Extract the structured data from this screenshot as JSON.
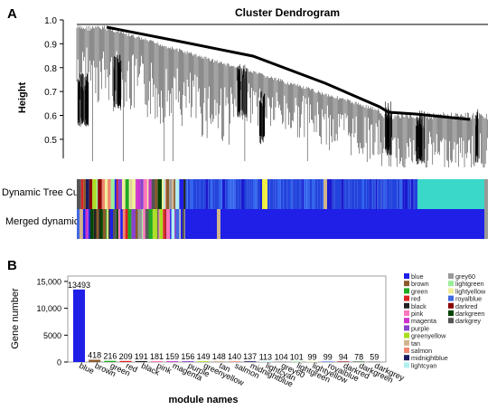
{
  "panelA": {
    "letter": "A",
    "chart_data": {
      "type": "dendrogram",
      "title": "Cluster Dendrogram",
      "ylabel": "Height",
      "yticks": [
        "0.5",
        "0.6",
        "0.7",
        "0.8",
        "0.9",
        "1.0"
      ],
      "ylim": [
        0.42,
        1.0
      ]
    },
    "row_labels": {
      "dynamic": "Dynamic Tree Cut",
      "merged": "Merged dynamic"
    }
  },
  "panelB": {
    "letter": "B",
    "chart_data": {
      "type": "bar",
      "ylabel": "Gene number",
      "xlabel": "module names",
      "ylim": [
        0,
        16000
      ],
      "yticks": [
        "0",
        "5000",
        "10,000",
        "15,000"
      ],
      "ytick_values": [
        0,
        5000,
        10000,
        15000
      ],
      "categories": [
        "blue",
        "brown",
        "green",
        "red",
        "black",
        "pink",
        "magenta",
        "purple",
        "greenyellow",
        "tan",
        "salmon",
        "midnightblue",
        "lightcyan",
        "grey60",
        "lightgreen",
        "lightyellow",
        "royalblue",
        "darkred",
        "darkgreen",
        "darkgrey"
      ],
      "values": [
        13493,
        418,
        216,
        209,
        191,
        181,
        159,
        156,
        149,
        148,
        140,
        137,
        113,
        104,
        101,
        99,
        99,
        94,
        78,
        59
      ],
      "value_labels": [
        "13493",
        "418",
        "216",
        "209",
        "191",
        "181",
        "159",
        "156",
        "149",
        "148",
        "140",
        "137",
        "113",
        "104",
        "101",
        "99",
        "99",
        "94",
        "78",
        "59"
      ],
      "colors": [
        "#1f1fe8",
        "#8b5a2b",
        "#22aa22",
        "#dd2222",
        "#222222",
        "#ff77bb",
        "#cc33cc",
        "#8844cc",
        "#aadd22",
        "#d2b48c",
        "#f08870",
        "#1a1a60",
        "#b0f0f0",
        "#999999",
        "#99ee99",
        "#eeee99",
        "#4169e1",
        "#8b0000",
        "#004400",
        "#555555"
      ]
    },
    "legend": [
      {
        "label": "blue",
        "color": "#1f1fe8"
      },
      {
        "label": "brown",
        "color": "#8b5a2b"
      },
      {
        "label": "green",
        "color": "#22aa22"
      },
      {
        "label": "red",
        "color": "#dd2222"
      },
      {
        "label": "black",
        "color": "#222222"
      },
      {
        "label": "pink",
        "color": "#ff77bb"
      },
      {
        "label": "magenta",
        "color": "#cc33cc"
      },
      {
        "label": "purple",
        "color": "#8844cc"
      },
      {
        "label": "greenyellow",
        "color": "#aadd22"
      },
      {
        "label": "tan",
        "color": "#d2b48c"
      },
      {
        "label": "salmon",
        "color": "#f08870"
      },
      {
        "label": "midnightblue",
        "color": "#1a1a60"
      },
      {
        "label": "lightcyan",
        "color": "#b0f0f0"
      },
      {
        "label": "grey60",
        "color": "#999999"
      },
      {
        "label": "lightgreen",
        "color": "#99ee99"
      },
      {
        "label": "lightyellow",
        "color": "#eeee99"
      },
      {
        "label": "royalblue",
        "color": "#4169e1"
      },
      {
        "label": "darkred",
        "color": "#8b0000"
      },
      {
        "label": "darkgreen",
        "color": "#004400"
      },
      {
        "label": "darkgrey",
        "color": "#555555"
      }
    ]
  }
}
